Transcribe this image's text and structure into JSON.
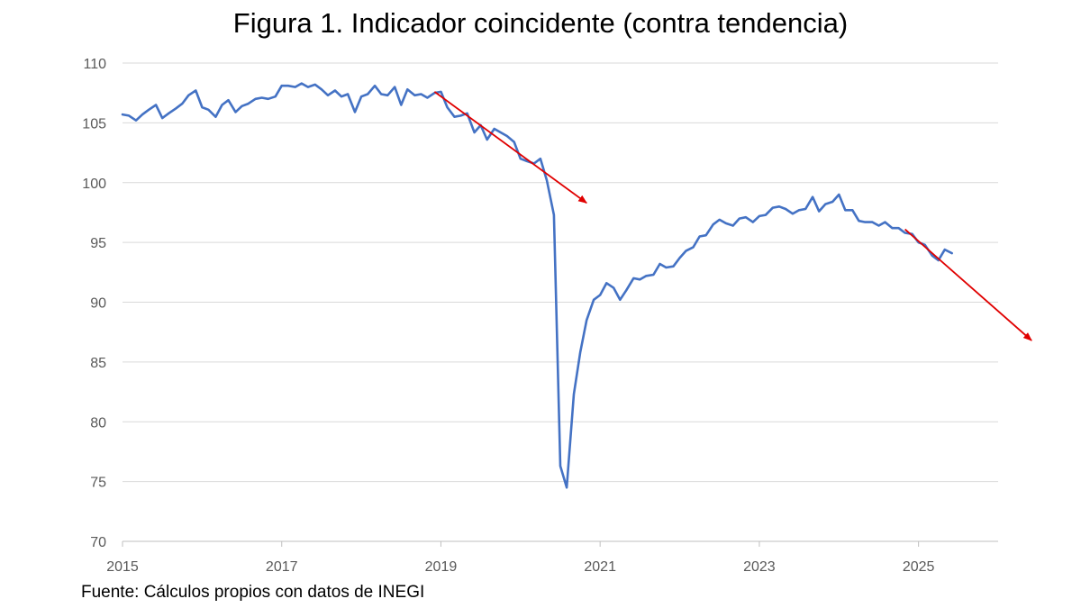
{
  "title": "Figura 1. Indicador coincidente (contra tendencia)",
  "source": "Fuente: Cálculos propios con datos de INEGI",
  "chart_data": {
    "type": "line",
    "title": "Figura 1. Indicador coincidente (contra tendencia)",
    "xlabel": "",
    "ylabel": "",
    "ylim": [
      70,
      110
    ],
    "xlim": [
      2015.0,
      2026.0
    ],
    "yticks": [
      "70",
      "75",
      "80",
      "85",
      "90",
      "95",
      "100",
      "105",
      "110"
    ],
    "xticks": [
      "2015",
      "2017",
      "2019",
      "2021",
      "2023",
      "2025"
    ],
    "grid": "horizontal",
    "line_color": "#4472C4",
    "arrow_color": "#E00000",
    "series": [
      {
        "points": [
          [
            2015.0,
            105.7
          ],
          [
            2015.08,
            105.6
          ],
          [
            2015.17,
            105.2
          ],
          [
            2015.25,
            105.7
          ],
          [
            2015.33,
            106.1
          ],
          [
            2015.42,
            106.5
          ],
          [
            2015.5,
            105.4
          ],
          [
            2015.58,
            105.8
          ],
          [
            2015.67,
            106.2
          ],
          [
            2015.75,
            106.6
          ],
          [
            2015.83,
            107.3
          ],
          [
            2015.92,
            107.7
          ],
          [
            2016.0,
            106.3
          ],
          [
            2016.08,
            106.1
          ],
          [
            2016.17,
            105.5
          ],
          [
            2016.25,
            106.5
          ],
          [
            2016.33,
            106.9
          ],
          [
            2016.42,
            105.9
          ],
          [
            2016.5,
            106.4
          ],
          [
            2016.58,
            106.6
          ],
          [
            2016.67,
            107.0
          ],
          [
            2016.75,
            107.1
          ],
          [
            2016.83,
            107.0
          ],
          [
            2016.92,
            107.2
          ],
          [
            2017.0,
            108.1
          ],
          [
            2017.08,
            108.1
          ],
          [
            2017.17,
            108.0
          ],
          [
            2017.25,
            108.3
          ],
          [
            2017.33,
            108.0
          ],
          [
            2017.42,
            108.2
          ],
          [
            2017.5,
            107.8
          ],
          [
            2017.58,
            107.3
          ],
          [
            2017.67,
            107.7
          ],
          [
            2017.75,
            107.2
          ],
          [
            2017.83,
            107.4
          ],
          [
            2017.92,
            105.9
          ],
          [
            2018.0,
            107.2
          ],
          [
            2018.08,
            107.4
          ],
          [
            2018.17,
            108.1
          ],
          [
            2018.25,
            107.4
          ],
          [
            2018.33,
            107.3
          ],
          [
            2018.42,
            108.0
          ],
          [
            2018.5,
            106.5
          ],
          [
            2018.58,
            107.8
          ],
          [
            2018.67,
            107.3
          ],
          [
            2018.75,
            107.4
          ],
          [
            2018.83,
            107.1
          ],
          [
            2018.92,
            107.5
          ],
          [
            2019.0,
            107.6
          ],
          [
            2019.08,
            106.3
          ],
          [
            2019.17,
            105.5
          ],
          [
            2019.25,
            105.6
          ],
          [
            2019.33,
            105.8
          ],
          [
            2019.42,
            104.2
          ],
          [
            2019.5,
            104.8
          ],
          [
            2019.58,
            103.6
          ],
          [
            2019.67,
            104.5
          ],
          [
            2019.75,
            104.2
          ],
          [
            2019.83,
            103.9
          ],
          [
            2019.92,
            103.4
          ],
          [
            2020.0,
            102.0
          ],
          [
            2020.08,
            101.8
          ],
          [
            2020.17,
            101.6
          ],
          [
            2020.25,
            102.0
          ],
          [
            2020.33,
            100.2
          ],
          [
            2020.42,
            97.3
          ],
          [
            2020.5,
            76.3
          ],
          [
            2020.58,
            74.5
          ],
          [
            2020.67,
            82.3
          ],
          [
            2020.75,
            85.8
          ],
          [
            2020.83,
            88.5
          ],
          [
            2020.92,
            90.2
          ],
          [
            2021.0,
            90.6
          ],
          [
            2021.08,
            91.6
          ],
          [
            2021.17,
            91.2
          ],
          [
            2021.25,
            90.2
          ],
          [
            2021.33,
            91.0
          ],
          [
            2021.42,
            92.0
          ],
          [
            2021.5,
            91.9
          ],
          [
            2021.58,
            92.2
          ],
          [
            2021.67,
            92.3
          ],
          [
            2021.75,
            93.2
          ],
          [
            2021.83,
            92.9
          ],
          [
            2021.92,
            93.0
          ],
          [
            2022.0,
            93.7
          ],
          [
            2022.08,
            94.3
          ],
          [
            2022.17,
            94.6
          ],
          [
            2022.25,
            95.5
          ],
          [
            2022.33,
            95.6
          ],
          [
            2022.42,
            96.5
          ],
          [
            2022.5,
            96.9
          ],
          [
            2022.58,
            96.6
          ],
          [
            2022.67,
            96.4
          ],
          [
            2022.75,
            97.0
          ],
          [
            2022.83,
            97.1
          ],
          [
            2022.92,
            96.7
          ],
          [
            2023.0,
            97.2
          ],
          [
            2023.08,
            97.3
          ],
          [
            2023.17,
            97.9
          ],
          [
            2023.25,
            98.0
          ],
          [
            2023.33,
            97.8
          ],
          [
            2023.42,
            97.4
          ],
          [
            2023.5,
            97.7
          ],
          [
            2023.58,
            97.8
          ],
          [
            2023.67,
            98.8
          ],
          [
            2023.75,
            97.6
          ],
          [
            2023.83,
            98.2
          ],
          [
            2023.92,
            98.4
          ],
          [
            2024.0,
            99.0
          ],
          [
            2024.08,
            97.7
          ],
          [
            2024.17,
            97.7
          ],
          [
            2024.25,
            96.8
          ],
          [
            2024.33,
            96.7
          ],
          [
            2024.42,
            96.7
          ],
          [
            2024.5,
            96.4
          ],
          [
            2024.58,
            96.7
          ],
          [
            2024.67,
            96.2
          ],
          [
            2024.75,
            96.2
          ],
          [
            2024.83,
            95.8
          ],
          [
            2024.92,
            95.7
          ],
          [
            2025.0,
            95.0
          ],
          [
            2025.08,
            94.8
          ],
          [
            2025.17,
            93.9
          ],
          [
            2025.25,
            93.5
          ],
          [
            2025.33,
            94.4
          ],
          [
            2025.42,
            94.1
          ]
        ]
      }
    ],
    "annotations": [
      {
        "type": "arrow",
        "from": [
          2018.92,
          107.6
        ],
        "to": [
          2020.83,
          98.3
        ]
      },
      {
        "type": "arrow",
        "from": [
          2024.83,
          96.1
        ],
        "to": [
          2026.42,
          86.8
        ]
      }
    ]
  }
}
